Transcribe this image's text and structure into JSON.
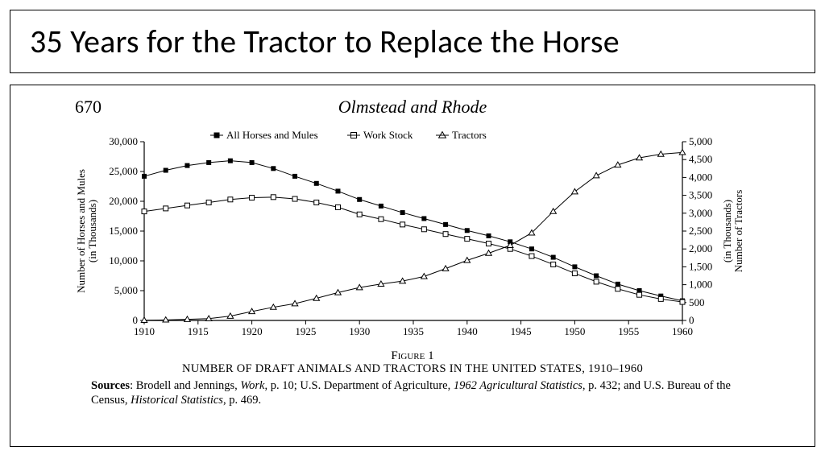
{
  "title": "35 Years for the Tractor to Replace the Horse",
  "page_number": "670",
  "paper_title": "Olmstead and Rhode",
  "figure_label": "Figure 1",
  "figure_caption": "NUMBER OF DRAFT ANIMALS AND TRACTORS IN THE UNITED STATES, 1910–1960",
  "sources_label": "Sources",
  "sources_text_1": ": Brodell and Jennings, ",
  "sources_italic_1": "Work",
  "sources_text_2": ", p. 10; U.S. Department of Agriculture, ",
  "sources_italic_2": "1962 Agricultural Statistics",
  "sources_text_3": ", p. 432; and U.S. Bureau of the Census, ",
  "sources_italic_3": "Historical Statistics",
  "sources_text_4": ", p. 469.",
  "chart": {
    "type": "line",
    "background_color": "#ffffff",
    "axis_color": "#000000",
    "line_color": "#000000",
    "line_width": 1,
    "marker_size": 4,
    "x_axis": {
      "label": "",
      "min": 1910,
      "max": 1960,
      "tick_step": 5,
      "ticks": [
        1910,
        1915,
        1920,
        1925,
        1930,
        1935,
        1940,
        1945,
        1950,
        1955,
        1960
      ]
    },
    "y_left": {
      "label": "Number of Horses and Mules",
      "sublabel": "(in Thousands)",
      "min": 0,
      "max": 30000,
      "tick_step": 5000,
      "ticks": [
        0,
        5000,
        10000,
        15000,
        20000,
        25000,
        30000
      ]
    },
    "y_right": {
      "label": "Number of Tractors",
      "sublabel": "(in Thousands)",
      "min": 0,
      "max": 5000,
      "tick_step": 500,
      "ticks": [
        0,
        500,
        1000,
        1500,
        2000,
        2500,
        3000,
        3500,
        4000,
        4500,
        5000
      ]
    },
    "legend": {
      "items": [
        "All Horses and Mules",
        "Work Stock",
        "Tractors"
      ],
      "markers": [
        "filled-square",
        "open-square",
        "open-triangle"
      ]
    },
    "series": [
      {
        "name": "All Horses and Mules",
        "axis": "left",
        "marker": "filled-square",
        "x": [
          1910,
          1912,
          1914,
          1916,
          1918,
          1920,
          1922,
          1924,
          1926,
          1928,
          1930,
          1932,
          1934,
          1936,
          1938,
          1940,
          1942,
          1944,
          1946,
          1948,
          1950,
          1952,
          1954,
          1956,
          1958,
          1960
        ],
        "y": [
          24200,
          25200,
          26000,
          26500,
          26800,
          26500,
          25500,
          24200,
          23000,
          21700,
          20300,
          19200,
          18100,
          17100,
          16100,
          15100,
          14200,
          13200,
          12000,
          10600,
          9000,
          7500,
          6100,
          5000,
          4100,
          3300
        ]
      },
      {
        "name": "Work Stock",
        "axis": "left",
        "marker": "open-square",
        "x": [
          1910,
          1912,
          1914,
          1916,
          1918,
          1920,
          1922,
          1924,
          1926,
          1928,
          1930,
          1932,
          1934,
          1936,
          1938,
          1940,
          1942,
          1944,
          1946,
          1948,
          1950,
          1952,
          1954,
          1956,
          1958,
          1960
        ],
        "y": [
          18300,
          18800,
          19300,
          19800,
          20300,
          20600,
          20700,
          20400,
          19800,
          19000,
          17800,
          17000,
          16100,
          15300,
          14500,
          13700,
          12900,
          12000,
          10800,
          9400,
          7900,
          6500,
          5300,
          4300,
          3600,
          3100
        ]
      },
      {
        "name": "Tractors",
        "axis": "right",
        "marker": "open-triangle",
        "x": [
          1910,
          1912,
          1914,
          1916,
          1918,
          1920,
          1922,
          1924,
          1926,
          1928,
          1930,
          1932,
          1934,
          1936,
          1938,
          1940,
          1942,
          1944,
          1946,
          1948,
          1950,
          1952,
          1954,
          1956,
          1958,
          1960
        ],
        "y": [
          5,
          15,
          30,
          50,
          120,
          250,
          370,
          470,
          620,
          780,
          920,
          1020,
          1100,
          1230,
          1450,
          1680,
          1880,
          2100,
          2450,
          3050,
          3600,
          4050,
          4350,
          4550,
          4650,
          4700
        ]
      }
    ]
  }
}
